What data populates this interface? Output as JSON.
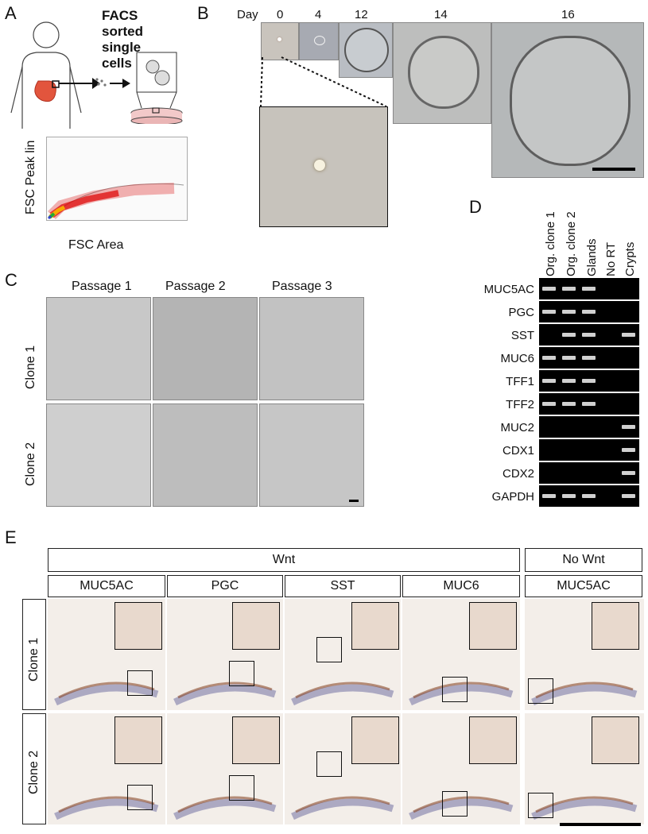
{
  "panels": {
    "a": "A",
    "b": "B",
    "c": "C",
    "d": "D",
    "e": "E"
  },
  "panel_a": {
    "facs_lines": [
      "FACS",
      "sorted",
      "single",
      "cells"
    ],
    "y_axis": "FSC Peak lin",
    "x_axis": "FSC Area"
  },
  "panel_b": {
    "day_label": "Day",
    "days": [
      "0",
      "4",
      "12",
      "14",
      "16"
    ]
  },
  "panel_c": {
    "passages": [
      "Passage 1",
      "Passage 2",
      "Passage 3"
    ],
    "clones": [
      "Clone 1",
      "Clone 2"
    ]
  },
  "panel_d": {
    "lanes": [
      "Org. clone 1",
      "Org. clone 2",
      "Glands",
      "No RT",
      "Crypts"
    ],
    "genes": [
      "MUC5AC",
      "PGC",
      "SST",
      "MUC6",
      "TFF1",
      "TFF2",
      "MUC2",
      "CDX1",
      "CDX2",
      "GAPDH"
    ],
    "band_presence": [
      [
        1,
        1,
        1,
        0,
        0
      ],
      [
        1,
        1,
        1,
        0,
        0
      ],
      [
        0,
        1,
        1,
        0,
        1
      ],
      [
        1,
        1,
        1,
        0,
        0
      ],
      [
        1,
        1,
        1,
        0,
        0
      ],
      [
        1,
        1,
        1,
        0,
        0
      ],
      [
        0,
        0,
        0,
        0,
        1
      ],
      [
        0,
        0,
        0,
        0,
        1
      ],
      [
        0,
        0,
        0,
        0,
        1
      ],
      [
        1,
        1,
        1,
        0,
        1
      ]
    ]
  },
  "panel_e": {
    "group_wnt": "Wnt",
    "group_no_wnt": "No Wnt",
    "stains": [
      "MUC5AC",
      "PGC",
      "SST",
      "MUC6",
      "MUC5AC"
    ],
    "clones": [
      "Clone 1",
      "Clone 2"
    ]
  },
  "colors": {
    "stain_brown": "#8a4a2a",
    "hematoxylin": "#7d7ba8",
    "gel_band": "#d0d0d0"
  }
}
